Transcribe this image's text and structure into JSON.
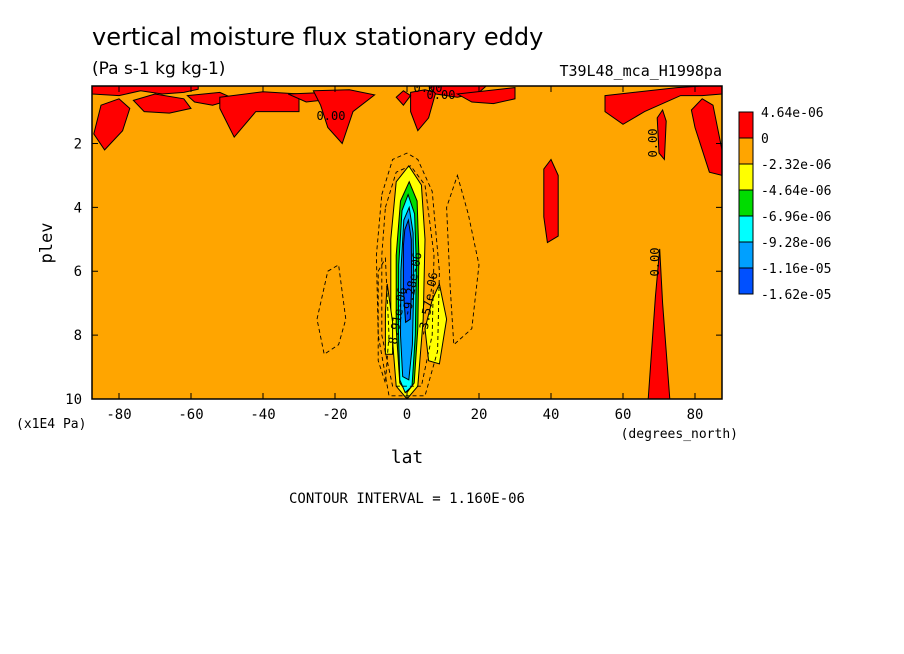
{
  "chart_data": {
    "type": "contour",
    "title": "vertical moisture flux stationary eddy",
    "units": "(Pa s-1 kg kg-1)",
    "dataset": "T39L48_mca_H1998pa",
    "xlabel": "lat",
    "ylabel": "plev",
    "x_units": "(degrees_north)",
    "y_units": "(x1E4 Pa)",
    "xlim": [
      -87.5,
      87.5
    ],
    "ylim": [
      10,
      0.2
    ],
    "x_ticks": [
      -80,
      -60,
      -40,
      -20,
      0,
      20,
      40,
      60,
      80
    ],
    "x_tick_labels": [
      "-80",
      "-60",
      "-40",
      "-20",
      "0",
      "20",
      "40",
      "60",
      "80"
    ],
    "y_ticks": [
      2,
      4,
      6,
      8,
      10
    ],
    "y_tick_labels": [
      "2",
      "4",
      "6",
      "8",
      "10"
    ],
    "contour_interval_text": "CONTOUR INTERVAL = 1.160E-06",
    "colorbar": {
      "labels": [
        "4.64e-06",
        "0",
        "-2.32e-06",
        "-4.64e-06",
        "-6.96e-06",
        "-9.28e-06",
        "-1.16e-05",
        "-1.62e-05"
      ],
      "colors": [
        "#ff0000",
        "#ffa500",
        "#ffff00",
        "#00dc00",
        "#00ffff",
        "#00a0ff",
        "#0050ff"
      ]
    },
    "contour_labels": [
      "0.00",
      "0.00",
      "0.00",
      "0.00",
      "0.00",
      "-9.28e-06",
      "-3.57e-06",
      "-8.91e-06"
    ],
    "regions": [
      {
        "level": "positive",
        "color": "#ff0000",
        "polys": [
          [
            [
              -87.5,
              0.2
            ],
            [
              -87.5,
              0.45
            ],
            [
              -80,
              0.5
            ],
            [
              -74,
              0.35
            ],
            [
              -68,
              0.45
            ],
            [
              -62,
              0.4
            ],
            [
              -58,
              0.3
            ],
            [
              -58,
              0.2
            ]
          ],
          [
            [
              -85,
              0.8
            ],
            [
              -80,
              0.6
            ],
            [
              -77,
              0.9
            ],
            [
              -79,
              1.6
            ],
            [
              -84,
              2.2
            ],
            [
              -87,
              1.7
            ]
          ],
          [
            [
              -76,
              0.65
            ],
            [
              -70,
              0.45
            ],
            [
              -62,
              0.6
            ],
            [
              -60,
              0.9
            ],
            [
              -66,
              1.05
            ],
            [
              -73,
              1.0
            ]
          ],
          [
            [
              -61,
              0.5
            ],
            [
              -52,
              0.4
            ],
            [
              -48,
              0.6
            ],
            [
              -54,
              0.8
            ],
            [
              -59,
              0.7
            ]
          ],
          [
            [
              -52,
              0.55
            ],
            [
              -40,
              0.38
            ],
            [
              -30,
              0.45
            ],
            [
              -30,
              1.0
            ],
            [
              -42,
              1.0
            ],
            [
              -48,
              1.8
            ],
            [
              -52,
              0.9
            ]
          ],
          [
            [
              -33,
              0.45
            ],
            [
              -22,
              0.4
            ],
            [
              -20,
              0.6
            ],
            [
              -28,
              0.7
            ]
          ],
          [
            [
              -26,
              0.35
            ],
            [
              -16,
              0.32
            ],
            [
              -9,
              0.48
            ],
            [
              -15,
              1.0
            ],
            [
              -18,
              2.0
            ],
            [
              -22,
              1.5
            ],
            [
              -24,
              0.8
            ]
          ],
          [
            [
              1,
              0.4
            ],
            [
              5,
              0.32
            ],
            [
              8,
              0.4
            ],
            [
              6,
              1.2
            ],
            [
              3,
              1.6
            ],
            [
              1,
              1.0
            ]
          ],
          [
            [
              6,
              0.2
            ],
            [
              22,
              0.2
            ],
            [
              20,
              0.4
            ],
            [
              14,
              0.55
            ],
            [
              8,
              0.45
            ]
          ],
          [
            [
              14,
              0.45
            ],
            [
              30,
              0.25
            ],
            [
              30,
              0.6
            ],
            [
              24,
              0.75
            ],
            [
              18,
              0.7
            ]
          ],
          [
            [
              -3,
              0.55
            ],
            [
              -1,
              0.35
            ],
            [
              1,
              0.5
            ],
            [
              -1,
              0.8
            ]
          ],
          [
            [
              55,
              0.5
            ],
            [
              75,
              0.25
            ],
            [
              82,
              0.2
            ],
            [
              87.5,
              0.2
            ],
            [
              87.5,
              0.45
            ],
            [
              82,
              0.5
            ],
            [
              76,
              0.5
            ],
            [
              66,
              1.0
            ],
            [
              60,
              1.4
            ],
            [
              55,
              1.0
            ]
          ],
          [
            [
              69.5,
              1.2
            ],
            [
              71,
              0.95
            ],
            [
              72,
              1.3
            ],
            [
              71.5,
              2.5
            ],
            [
              70,
              2.3
            ]
          ],
          [
            [
              79,
              0.95
            ],
            [
              82,
              0.6
            ],
            [
              85,
              0.8
            ],
            [
              87.5,
              2.2
            ],
            [
              87.5,
              3.0
            ],
            [
              84,
              2.9
            ],
            [
              80,
              1.5
            ]
          ],
          [
            [
              38,
              2.8
            ],
            [
              40,
              2.5
            ],
            [
              42,
              3.0
            ],
            [
              42,
              4.9
            ],
            [
              39,
              5.1
            ],
            [
              38,
              4.3
            ]
          ],
          [
            [
              67,
              10
            ],
            [
              69,
              6.8
            ],
            [
              70.2,
              5.3
            ],
            [
              71,
              7.0
            ],
            [
              73,
              10
            ]
          ]
        ]
      },
      {
        "level": "-2.32e-06",
        "color": "#ffff00",
        "polys": [
          [
            [
              -3,
              3.2
            ],
            [
              0.5,
              2.7
            ],
            [
              4,
              3.3
            ],
            [
              5,
              5.0
            ],
            [
              4.5,
              7.5
            ],
            [
              3,
              9.6
            ],
            [
              0,
              10
            ],
            [
              -3,
              9.6
            ],
            [
              -4.5,
              7.5
            ],
            [
              -4.5,
              5.0
            ]
          ],
          [
            [
              7,
              6.9
            ],
            [
              9,
              6.4
            ],
            [
              11,
              7.5
            ],
            [
              9,
              8.9
            ],
            [
              6,
              8.8
            ],
            [
              5,
              7.8
            ]
          ],
          [
            [
              -6,
              8.6
            ],
            [
              -6,
              7.3
            ],
            [
              -5.5,
              6.4
            ],
            [
              -4,
              7.6
            ],
            [
              -4,
              8.6
            ]
          ]
        ]
      },
      {
        "level": "-4.64e-06",
        "color": "#00dc00",
        "polys": [
          [
            [
              -1.8,
              3.8
            ],
            [
              0.6,
              3.2
            ],
            [
              2.8,
              3.8
            ],
            [
              3.3,
              5.5
            ],
            [
              3,
              7.8
            ],
            [
              2,
              9.5
            ],
            [
              0,
              9.8
            ],
            [
              -2,
              9.5
            ],
            [
              -3,
              7.8
            ],
            [
              -3,
              5.5
            ]
          ]
        ]
      },
      {
        "level": "-6.96e-06",
        "color": "#00ffff",
        "polys": [
          [
            [
              -1.4,
              4.1
            ],
            [
              0.3,
              3.6
            ],
            [
              2.1,
              4.2
            ],
            [
              2.6,
              5.8
            ],
            [
              2.3,
              8.0
            ],
            [
              1.4,
              9.6
            ],
            [
              -0.5,
              9.8
            ],
            [
              -2,
              9.4
            ],
            [
              -2.4,
              7.8
            ],
            [
              -2.3,
              5.8
            ]
          ]
        ]
      },
      {
        "level": "-9.28e-06",
        "color": "#00a0ff",
        "polys": [
          [
            [
              -0.9,
              4.4
            ],
            [
              0.6,
              4.0
            ],
            [
              1.7,
              4.8
            ],
            [
              1.9,
              6.4
            ],
            [
              1.5,
              8.3
            ],
            [
              0.5,
              9.4
            ],
            [
              -1.2,
              9.3
            ],
            [
              -1.8,
              8.0
            ],
            [
              -1.7,
              6.0
            ]
          ]
        ]
      },
      {
        "level": "-1.16e-05",
        "color": "#0050ff",
        "polys": [
          [
            [
              -0.6,
              4.7
            ],
            [
              0.4,
              4.4
            ],
            [
              1.2,
              5.0
            ],
            [
              1.3,
              6.5
            ],
            [
              0.9,
              7.5
            ],
            [
              -0.4,
              7.6
            ],
            [
              -1.0,
              6.6
            ],
            [
              -1.0,
              5.2
            ]
          ]
        ]
      }
    ],
    "dashed_contours": [
      [
        [
          -7,
          3.6
        ],
        [
          -4,
          2.5
        ],
        [
          0,
          2.3
        ],
        [
          3,
          2.5
        ],
        [
          7,
          3.5
        ],
        [
          9,
          6.0
        ],
        [
          8.5,
          8.5
        ],
        [
          5,
          9.9
        ],
        [
          -5,
          9.9
        ],
        [
          -8,
          8.0
        ],
        [
          -8.5,
          5.5
        ]
      ],
      [
        [
          -6,
          4.0
        ],
        [
          -3,
          2.9
        ],
        [
          1,
          2.7
        ],
        [
          5,
          3.3
        ],
        [
          7.5,
          5.5
        ],
        [
          7,
          8.0
        ],
        [
          4,
          9.6
        ],
        [
          -4,
          9.6
        ],
        [
          -7,
          8.0
        ],
        [
          -7,
          5.5
        ]
      ],
      [
        [
          -22,
          6.0
        ],
        [
          -19,
          5.8
        ],
        [
          -17,
          7.5
        ],
        [
          -19,
          8.3
        ],
        [
          -23,
          8.6
        ],
        [
          -25,
          7.5
        ]
      ],
      [
        [
          14,
          3.0
        ],
        [
          17,
          4.2
        ],
        [
          20,
          5.8
        ],
        [
          18,
          7.8
        ],
        [
          13,
          8.3
        ],
        [
          12,
          6.5
        ],
        [
          11,
          4.0
        ]
      ],
      [
        [
          -8,
          6.0
        ],
        [
          -6,
          5.6
        ],
        [
          -5,
          8.0
        ],
        [
          -6,
          9.5
        ],
        [
          -8,
          8.8
        ]
      ]
    ]
  }
}
